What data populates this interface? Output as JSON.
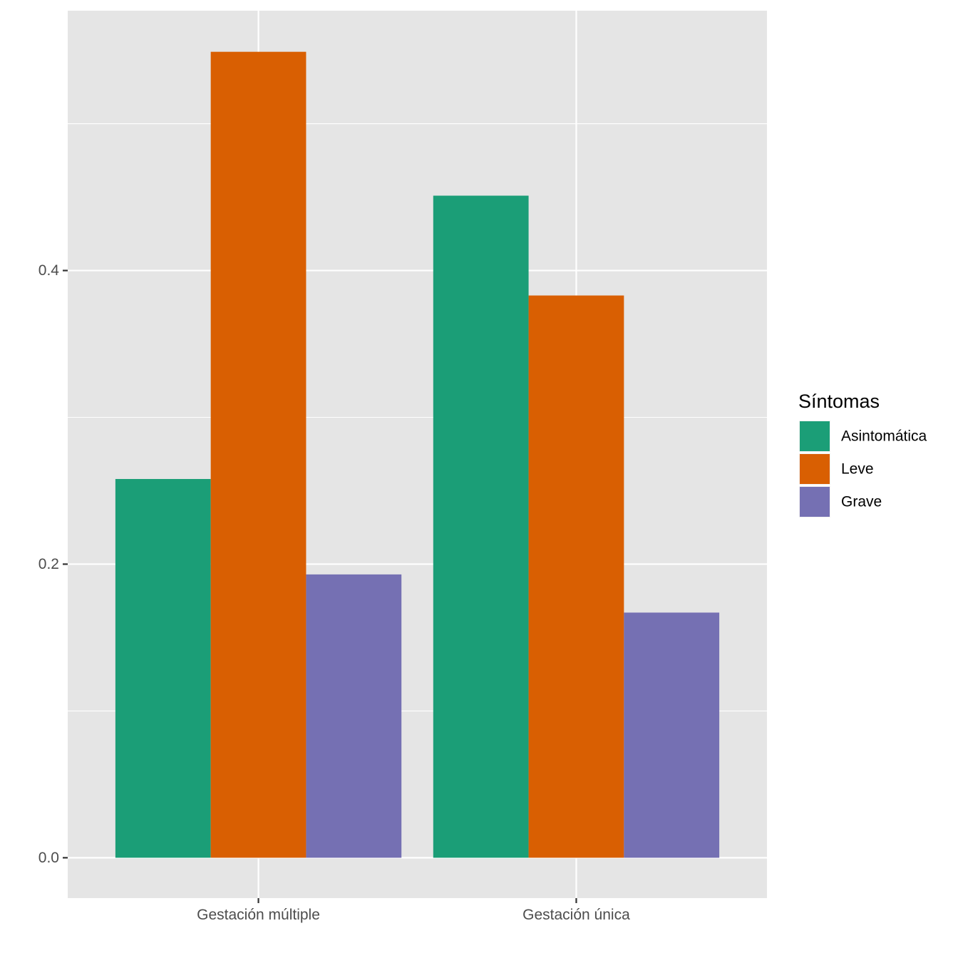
{
  "chart_data": {
    "type": "bar",
    "title": "",
    "xlabel": "",
    "ylabel": "",
    "categories": [
      "Gestación múltiple",
      "Gestación única"
    ],
    "series": [
      {
        "name": "Asintomática",
        "color": "#1B9E77",
        "values": [
          0.258,
          0.451
        ]
      },
      {
        "name": "Leve",
        "color": "#D95F02",
        "values": [
          0.549,
          0.383
        ]
      },
      {
        "name": "Grave",
        "color": "#7570B3",
        "values": [
          0.193,
          0.167
        ]
      }
    ],
    "ylim": [
      -0.0275,
      0.577
    ],
    "yticks": [
      0.0,
      0.2,
      0.4
    ],
    "ytick_labels": [
      "0.0",
      "0.2",
      "0.4"
    ],
    "grid": true,
    "legend": {
      "title": "Síntomas",
      "position": "right"
    },
    "panel_background": "#E5E5E5",
    "grid_color": "#FFFFFF"
  }
}
